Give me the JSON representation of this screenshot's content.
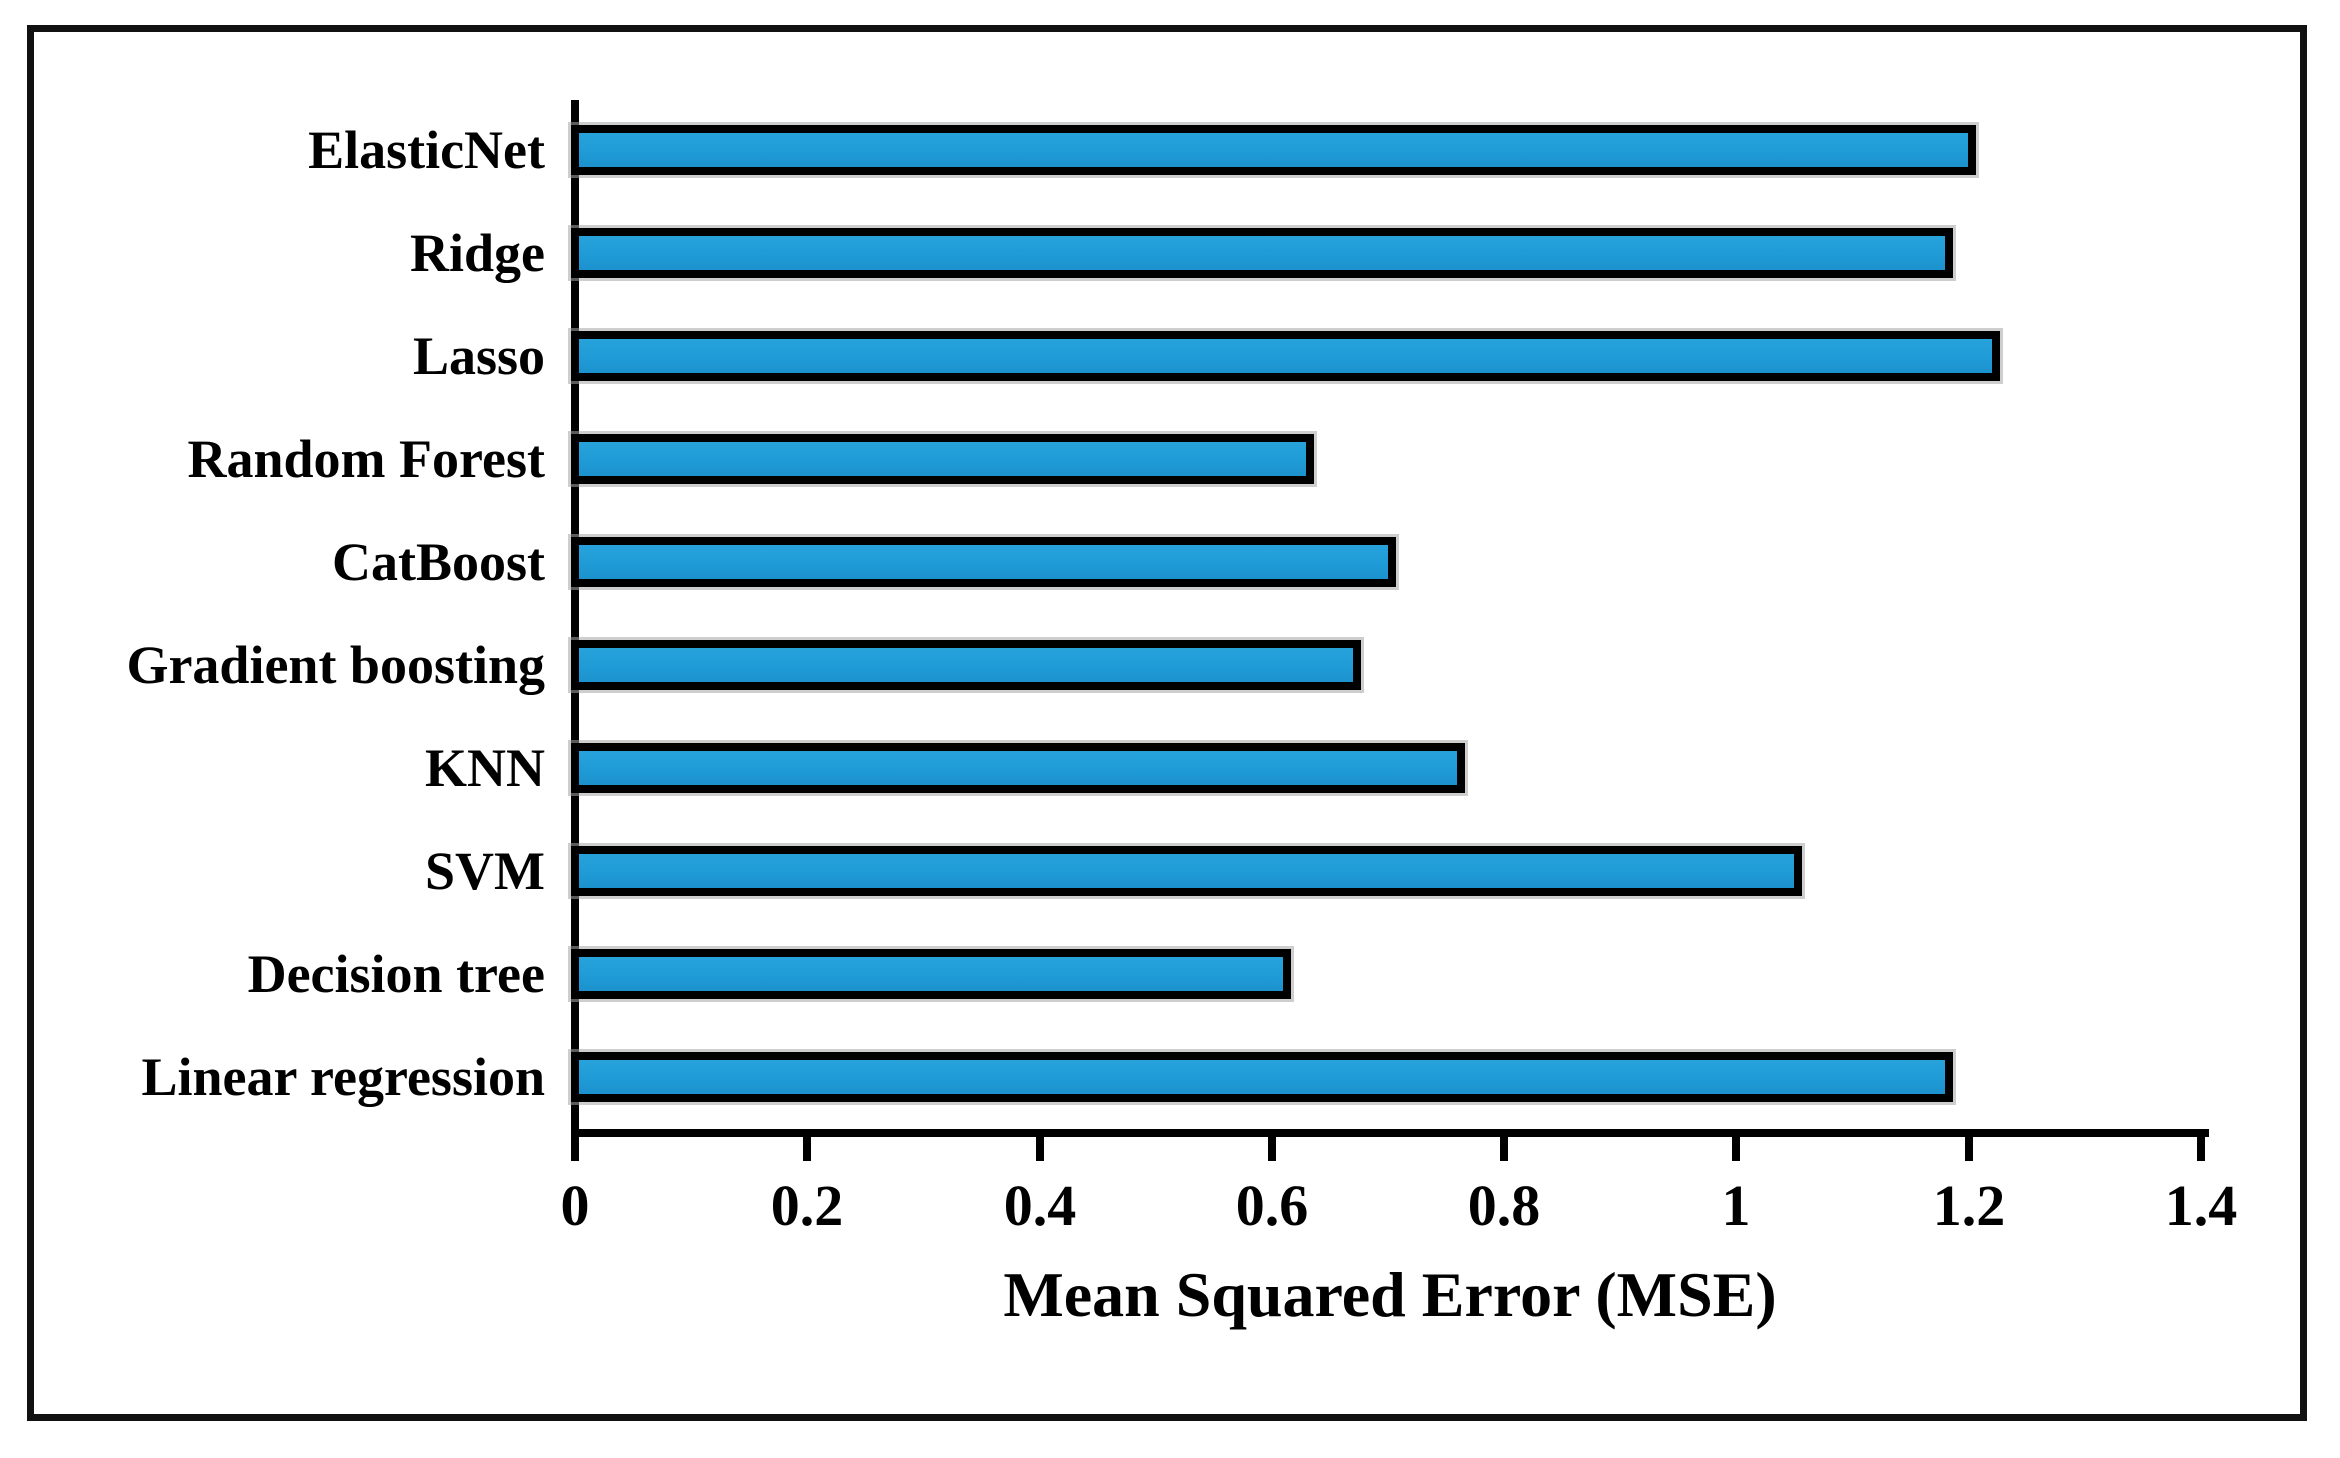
{
  "figure": {
    "background": "#ffffff",
    "border_color": "#111111"
  },
  "chart_data": {
    "type": "bar",
    "orientation": "horizontal",
    "title": "",
    "xlabel": "Mean Squared Error (MSE)",
    "ylabel": "",
    "categories": [
      "ElasticNet",
      "Ridge",
      "Lasso",
      "Random Forest",
      "CatBoost",
      "Gradient boosting",
      "KNN",
      "SVM",
      "Decision tree",
      "Linear regression"
    ],
    "values": [
      1.21,
      1.19,
      1.23,
      0.64,
      0.71,
      0.68,
      0.77,
      1.06,
      0.62,
      1.19
    ],
    "xlim": [
      0,
      1.4
    ],
    "xticks": [
      0,
      0.2,
      0.4,
      0.6,
      0.8,
      1,
      1.2,
      1.4
    ],
    "xtick_labels": [
      "0",
      "0.2",
      "0.4",
      "0.6",
      "0.8",
      "1",
      "1.2",
      "1.4"
    ],
    "bar_color": "#1F9BD7",
    "bar_border_color": "#000000",
    "grid": false,
    "legend_position": "none"
  }
}
